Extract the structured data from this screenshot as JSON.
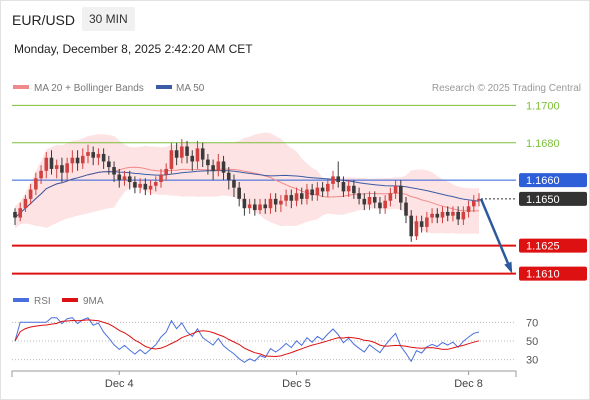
{
  "header": {
    "pair": "EUR/USD",
    "timeframe": "30 MIN",
    "timestamp": "Monday, December 8, 2025 2:42:20 AM CET"
  },
  "colors": {
    "ma20": "#f08a8a",
    "bands_fill": "#fde3e3",
    "ma50": "#3b5ba5",
    "up_candle": "#d24040",
    "down_candle": "#3a3a3a",
    "resistance": "#7cbf3a",
    "support": "#dd1111",
    "current_price": "#2f5fd8",
    "rsi": "#4a6fdc",
    "rsi_ma": "#dd1111",
    "arrow": "#2d5a9c"
  },
  "legend": {
    "ma20": "MA 20 + Bollinger Bands",
    "ma50": "MA 50",
    "source": "Research © 2025 Trading Central"
  },
  "rsi_legend": {
    "rsi": "RSI",
    "ma": "9MA"
  },
  "chart_data": {
    "type": "candlestick",
    "y_range": [
      1.1605,
      1.1705
    ],
    "levels": [
      {
        "label": "1.1700",
        "value": 1.17,
        "kind": "resistance"
      },
      {
        "label": "1.1680",
        "value": 1.168,
        "kind": "resistance"
      },
      {
        "label": "1.1660",
        "value": 1.166,
        "kind": "pivot"
      },
      {
        "label": "1.1650",
        "value": 1.165,
        "kind": "last"
      },
      {
        "label": "1.1625",
        "value": 1.1625,
        "kind": "support"
      },
      {
        "label": "1.1610",
        "value": 1.161,
        "kind": "support"
      }
    ],
    "x_ticks": [
      "Dec 4",
      "Dec 5",
      "Dec 8"
    ],
    "candles": [
      [
        1.1643,
        1.164,
        1.1645,
        1.1636
      ],
      [
        1.164,
        1.1645,
        1.1648,
        1.1638
      ],
      [
        1.1645,
        1.165,
        1.1652,
        1.1643
      ],
      [
        1.165,
        1.1655,
        1.1658,
        1.1647
      ],
      [
        1.1655,
        1.1661,
        1.1664,
        1.1652
      ],
      [
        1.1661,
        1.1665,
        1.1668,
        1.1658
      ],
      [
        1.1665,
        1.1672,
        1.1675,
        1.1661
      ],
      [
        1.1672,
        1.1666,
        1.1676,
        1.1663
      ],
      [
        1.1666,
        1.1668,
        1.1671,
        1.1661
      ],
      [
        1.1668,
        1.1664,
        1.1672,
        1.1659
      ],
      [
        1.1664,
        1.1669,
        1.1672,
        1.166
      ],
      [
        1.1669,
        1.1672,
        1.1676,
        1.1664
      ],
      [
        1.1672,
        1.1669,
        1.1676,
        1.1665
      ],
      [
        1.1669,
        1.1673,
        1.1677,
        1.1666
      ],
      [
        1.1673,
        1.1675,
        1.1679,
        1.1669
      ],
      [
        1.1675,
        1.1672,
        1.1678,
        1.1668
      ],
      [
        1.1672,
        1.1674,
        1.1677,
        1.1668
      ],
      [
        1.1674,
        1.167,
        1.1677,
        1.1666
      ],
      [
        1.167,
        1.1667,
        1.1673,
        1.1663
      ],
      [
        1.1667,
        1.1663,
        1.167,
        1.1659
      ],
      [
        1.1663,
        1.166,
        1.1666,
        1.1656
      ],
      [
        1.166,
        1.1662,
        1.1665,
        1.1657
      ],
      [
        1.1662,
        1.1659,
        1.1665,
        1.1655
      ],
      [
        1.1659,
        1.1656,
        1.1662,
        1.1653
      ],
      [
        1.1656,
        1.1658,
        1.1661,
        1.1653
      ],
      [
        1.1658,
        1.1655,
        1.1661,
        1.1652
      ],
      [
        1.1655,
        1.1657,
        1.166,
        1.1652
      ],
      [
        1.1657,
        1.1659,
        1.1662,
        1.1654
      ],
      [
        1.1659,
        1.1663,
        1.1666,
        1.1656
      ],
      [
        1.1663,
        1.1666,
        1.1669,
        1.166
      ],
      [
        1.1666,
        1.1676,
        1.168,
        1.1663
      ],
      [
        1.1676,
        1.1672,
        1.168,
        1.1668
      ],
      [
        1.1672,
        1.1678,
        1.1682,
        1.1669
      ],
      [
        1.1678,
        1.1673,
        1.1681,
        1.1669
      ],
      [
        1.1673,
        1.167,
        1.1676,
        1.1665
      ],
      [
        1.167,
        1.1677,
        1.1681,
        1.1666
      ],
      [
        1.1677,
        1.1671,
        1.168,
        1.1667
      ],
      [
        1.1671,
        1.1668,
        1.1674,
        1.1663
      ],
      [
        1.1668,
        1.1665,
        1.1671,
        1.166
      ],
      [
        1.1665,
        1.167,
        1.1674,
        1.1662
      ],
      [
        1.167,
        1.1664,
        1.1673,
        1.166
      ],
      [
        1.1664,
        1.166,
        1.1667,
        1.1655
      ],
      [
        1.166,
        1.1656,
        1.1663,
        1.1651
      ],
      [
        1.1656,
        1.165,
        1.1659,
        1.1646
      ],
      [
        1.165,
        1.1645,
        1.1653,
        1.1641
      ],
      [
        1.1645,
        1.1647,
        1.165,
        1.1642
      ],
      [
        1.1647,
        1.1644,
        1.165,
        1.1641
      ],
      [
        1.1644,
        1.1647,
        1.165,
        1.1642
      ],
      [
        1.1647,
        1.1645,
        1.165,
        1.1642
      ],
      [
        1.1645,
        1.165,
        1.1653,
        1.1642
      ],
      [
        1.165,
        1.1647,
        1.1653,
        1.1643
      ],
      [
        1.1647,
        1.1649,
        1.1652,
        1.1643
      ],
      [
        1.1649,
        1.1652,
        1.1655,
        1.1646
      ],
      [
        1.1652,
        1.1649,
        1.1655,
        1.1645
      ],
      [
        1.1649,
        1.1653,
        1.1656,
        1.1646
      ],
      [
        1.1653,
        1.165,
        1.1656,
        1.1647
      ],
      [
        1.165,
        1.1655,
        1.1658,
        1.1647
      ],
      [
        1.1655,
        1.1652,
        1.1658,
        1.1649
      ],
      [
        1.1652,
        1.1656,
        1.1659,
        1.1649
      ],
      [
        1.1656,
        1.1654,
        1.1659,
        1.1651
      ],
      [
        1.1654,
        1.1658,
        1.1661,
        1.1651
      ],
      [
        1.1658,
        1.1662,
        1.1665,
        1.1655
      ],
      [
        1.1662,
        1.1659,
        1.167,
        1.1656
      ],
      [
        1.1659,
        1.1654,
        1.1662,
        1.1651
      ],
      [
        1.1654,
        1.1657,
        1.166,
        1.1651
      ],
      [
        1.1657,
        1.1653,
        1.166,
        1.165
      ],
      [
        1.1653,
        1.165,
        1.1656,
        1.1647
      ],
      [
        1.165,
        1.1647,
        1.1653,
        1.1644
      ],
      [
        1.1647,
        1.1651,
        1.1654,
        1.1644
      ],
      [
        1.1651,
        1.1648,
        1.1654,
        1.1645
      ],
      [
        1.1648,
        1.1645,
        1.1651,
        1.1642
      ],
      [
        1.1645,
        1.1649,
        1.1652,
        1.1642
      ],
      [
        1.1649,
        1.1653,
        1.1656,
        1.1646
      ],
      [
        1.1653,
        1.1657,
        1.166,
        1.165
      ],
      [
        1.1657,
        1.1648,
        1.166,
        1.1644
      ],
      [
        1.1648,
        1.1641,
        1.1651,
        1.1637
      ],
      [
        1.1641,
        1.163,
        1.1644,
        1.1627
      ],
      [
        1.163,
        1.1638,
        1.1641,
        1.1628
      ],
      [
        1.1638,
        1.1635,
        1.1641,
        1.1632
      ],
      [
        1.1635,
        1.164,
        1.1643,
        1.1632
      ],
      [
        1.164,
        1.1642,
        1.1645,
        1.1637
      ],
      [
        1.1642,
        1.164,
        1.1645,
        1.1637
      ],
      [
        1.164,
        1.1643,
        1.1646,
        1.1637
      ],
      [
        1.1643,
        1.1641,
        1.1646,
        1.1638
      ],
      [
        1.1641,
        1.1643,
        1.1646,
        1.1638
      ],
      [
        1.1643,
        1.1639,
        1.1646,
        1.1636
      ],
      [
        1.1639,
        1.1643,
        1.1646,
        1.1636
      ],
      [
        1.1643,
        1.1646,
        1.1649,
        1.164
      ],
      [
        1.1646,
        1.1649,
        1.1652,
        1.1643
      ],
      [
        1.1649,
        1.165,
        1.1653,
        1.1646
      ]
    ],
    "rsi": {
      "ylim": [
        20,
        80
      ],
      "ticks": [
        "70",
        "50",
        "30"
      ],
      "tick_values": [
        70,
        50,
        30
      ]
    }
  }
}
